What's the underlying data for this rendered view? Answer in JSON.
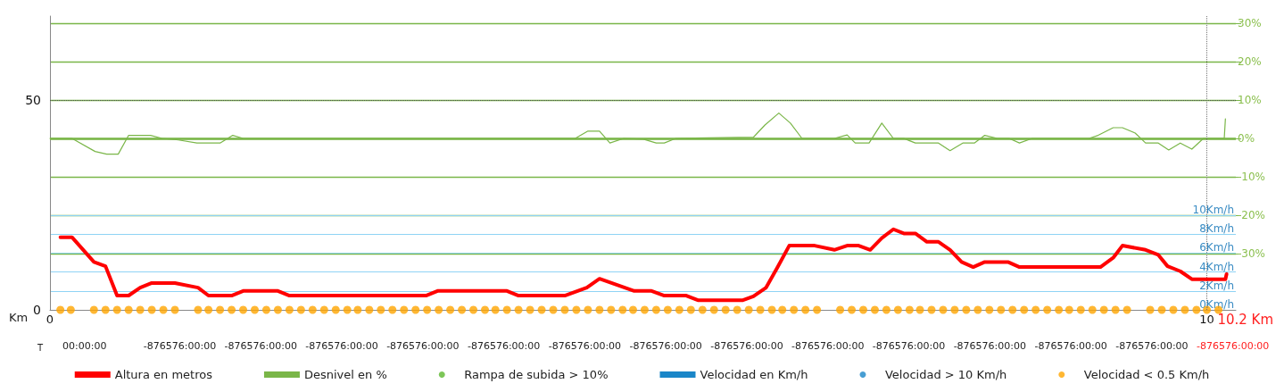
{
  "chart_data": {
    "type": "line",
    "xlabel": "Km",
    "x2label": "T",
    "xlim": [
      0,
      10.25
    ],
    "xticks": [
      0,
      10
    ],
    "annotations": [
      "10.2 Km",
      "00:00:00",
      "-876576:00:00",
      "-876576:00:00",
      "-876576:00:00",
      "-876576:00:00",
      "-876576:00:00",
      "-876576:00:00",
      "-876576:00:00",
      "-876576:00:00",
      "-876576:00:00",
      "-876576:00:00",
      "-876576:00:00",
      "-876576:00:00",
      "-876576:00:00",
      "-876576:00:00"
    ],
    "ylim": [
      0,
      70
    ],
    "yticks": [
      0,
      50
    ],
    "y2lim": [
      -44.7,
      31.9
    ],
    "y2ticks": [
      {
        "value": 30,
        "label": "30%"
      },
      {
        "value": 20,
        "label": "20%"
      },
      {
        "value": 10,
        "label": "10%"
      },
      {
        "value": 0,
        "label": "0%"
      },
      {
        "value": -10,
        "label": "-10%"
      },
      {
        "value": -20,
        "label": "-20%"
      },
      {
        "value": -30,
        "label": "-30%"
      }
    ],
    "y3lim": [
      0,
      31
    ],
    "y3ticks": [
      {
        "value": 0,
        "label": "0Km/h"
      },
      {
        "value": 2,
        "label": "2Km/h"
      },
      {
        "value": 4,
        "label": "4Km/h"
      },
      {
        "value": 6,
        "label": "6Km/h"
      },
      {
        "value": 8,
        "label": "8Km/h"
      },
      {
        "value": 10,
        "label": "10Km/h"
      }
    ],
    "grid": "y",
    "legend": "bottom",
    "ref_lines": [
      {
        "axis": "y2",
        "value": 0,
        "color": "#7ab648"
      },
      {
        "axis": "x",
        "value": 10,
        "line_style": "dotted",
        "color": "#777777"
      },
      {
        "axis": "y",
        "value": 50,
        "line_style": "dotted",
        "color": "#555555"
      }
    ],
    "series": [
      {
        "name": "Altura en metros",
        "color": "#ff0000",
        "x": [
          0.09,
          0.19,
          0.38,
          0.48,
          0.58,
          0.68,
          0.78,
          0.88,
          1.08,
          1.28,
          1.37,
          1.57,
          1.67,
          1.97,
          2.07,
          3.25,
          3.35,
          3.95,
          4.05,
          4.45,
          4.64,
          4.75,
          5.05,
          5.2,
          5.31,
          5.5,
          5.6,
          5.99,
          6.08,
          6.19,
          6.29,
          6.39,
          6.61,
          6.78,
          6.89,
          6.99,
          7.09,
          7.19,
          7.29,
          7.38,
          7.48,
          7.58,
          7.68,
          7.78,
          7.88,
          7.98,
          8.08,
          8.28,
          8.38,
          9.08,
          9.19,
          9.27,
          9.47,
          9.58,
          9.66,
          9.77,
          9.87,
          10.16,
          10.17
        ],
        "values": [
          17.3,
          17.3,
          11.4,
          10.4,
          3.4,
          3.4,
          5.3,
          6.4,
          6.4,
          5.3,
          3.4,
          3.4,
          4.5,
          4.5,
          3.4,
          3.4,
          4.5,
          4.5,
          3.4,
          3.4,
          5.3,
          7.4,
          4.5,
          4.5,
          3.4,
          3.4,
          2.3,
          2.3,
          3.2,
          5.3,
          10.2,
          15.3,
          15.3,
          14.3,
          15.3,
          15.3,
          14.3,
          17.1,
          19.2,
          18.2,
          18.2,
          16.2,
          16.2,
          14.3,
          11.4,
          10.2,
          11.4,
          11.4,
          10.2,
          10.2,
          12.4,
          15.3,
          14.3,
          13.1,
          10.4,
          9.2,
          7.3,
          7.3,
          8.5
        ]
      },
      {
        "name": "Desnivel en %",
        "axis": "y2",
        "color": "#7ab648",
        "x": [
          0,
          0.19,
          0.39,
          0.49,
          0.59,
          0.68,
          0.87,
          0.97,
          1.11,
          1.27,
          1.47,
          1.58,
          1.67,
          4.54,
          4.65,
          4.75,
          4.84,
          4.96,
          5.13,
          5.24,
          5.31,
          5.41,
          6.08,
          6.18,
          6.3,
          6.4,
          6.5,
          6.78,
          6.89,
          6.96,
          7.08,
          7.19,
          7.29,
          7.38,
          7.48,
          7.68,
          7.78,
          7.89,
          7.99,
          8.08,
          8.19,
          8.29,
          8.38,
          8.49,
          8.98,
          9.06,
          9.19,
          9.27,
          9.38,
          9.47,
          9.58,
          9.67,
          9.77,
          9.87,
          9.97,
          10.15,
          10.16
        ],
        "values": [
          0,
          0,
          -3.4,
          -4.1,
          -4.1,
          0.8,
          0.8,
          0,
          -0.4,
          -1.2,
          -1.2,
          0.8,
          0,
          0,
          1.9,
          1.9,
          -1.2,
          0,
          -0.2,
          -1.2,
          -1.2,
          0,
          0.3,
          3.5,
          6.6,
          4,
          0,
          0,
          0.9,
          -1.2,
          -1.2,
          4,
          0,
          0,
          -1.2,
          -1.2,
          -3.2,
          -1.2,
          -1.2,
          0.8,
          0,
          0,
          -1.2,
          0,
          0,
          0.8,
          2.8,
          2.8,
          1.4,
          -1.2,
          -1.2,
          -3,
          -1.2,
          -2.8,
          0,
          0,
          5.1
        ]
      },
      {
        "name": "Rampa de subida > 10%",
        "type": "scatter",
        "axis": "y2",
        "color": "#5cb82e"
      },
      {
        "name": "Velocidad en Km/h",
        "type": "line",
        "axis": "y3",
        "color": "#1a86c8"
      },
      {
        "name": "Velocidad > 10 Km/h",
        "type": "scatter",
        "axis": "y3",
        "color": "#1a86c8"
      },
      {
        "name": "Velocidad < 0.5 Km/h",
        "type": "scatter",
        "axis": "y3",
        "color": "#ffa500",
        "x": [
          0.09,
          0.18,
          0.38,
          0.48,
          0.58,
          0.68,
          0.78,
          0.88,
          0.98,
          1.08,
          1.28,
          1.37,
          1.47,
          1.57,
          1.67,
          1.77,
          1.87,
          1.97,
          2.07,
          2.17,
          2.27,
          2.37,
          2.47,
          2.57,
          2.66,
          2.76,
          2.86,
          2.96,
          3.06,
          3.16,
          3.26,
          3.36,
          3.46,
          3.56,
          3.66,
          3.76,
          3.85,
          3.95,
          4.05,
          4.15,
          4.25,
          4.35,
          4.45,
          4.55,
          4.65,
          4.75,
          4.85,
          4.95,
          5.04,
          5.14,
          5.24,
          5.34,
          5.44,
          5.54,
          5.64,
          5.74,
          5.84,
          5.94,
          6.04,
          6.14,
          6.24,
          6.33,
          6.43,
          6.53,
          6.63,
          6.83,
          6.93,
          7.03,
          7.13,
          7.23,
          7.33,
          7.43,
          7.52,
          7.62,
          7.72,
          7.82,
          7.92,
          8.02,
          8.12,
          8.22,
          8.32,
          8.42,
          8.52,
          8.62,
          8.72,
          8.81,
          8.91,
          9.01,
          9.11,
          9.21,
          9.31,
          9.51,
          9.61,
          9.71,
          9.81,
          9.91,
          10.0,
          10.1
        ],
        "values": [
          0,
          0,
          0,
          0,
          0,
          0,
          0,
          0,
          0,
          0,
          0,
          0,
          0,
          0,
          0,
          0,
          0,
          0,
          0,
          0,
          0,
          0,
          0,
          0,
          0,
          0,
          0,
          0,
          0,
          0,
          0,
          0,
          0,
          0,
          0,
          0,
          0,
          0,
          0,
          0,
          0,
          0,
          0,
          0,
          0,
          0,
          0,
          0,
          0,
          0,
          0,
          0,
          0,
          0,
          0,
          0,
          0,
          0,
          0,
          0,
          0,
          0,
          0,
          0,
          0,
          0,
          0,
          0,
          0,
          0,
          0,
          0,
          0,
          0,
          0,
          0,
          0,
          0,
          0,
          0,
          0,
          0,
          0,
          0,
          0,
          0,
          0,
          0,
          0,
          0,
          0,
          0,
          0,
          0,
          0,
          0,
          0,
          0
        ]
      }
    ]
  }
}
